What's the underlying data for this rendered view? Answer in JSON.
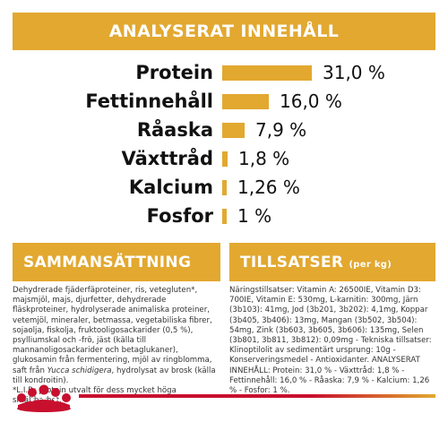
{
  "analysis": {
    "title": "ANALYSERAT INNEHÅLL",
    "rows": [
      {
        "label": "Protein",
        "value": "31,0 %",
        "percent": 31.0
      },
      {
        "label": "Fettinnehåll",
        "value": "16,0 %",
        "percent": 16.0
      },
      {
        "label": "Råaska",
        "value": "7,9 %",
        "percent": 7.9
      },
      {
        "label": "Växttråd",
        "value": "1,8 %",
        "percent": 1.8
      },
      {
        "label": "Kalcium",
        "value": "1,26 %",
        "percent": 1.26
      },
      {
        "label": "Fosfor",
        "value": "1 %",
        "percent": 1.0
      }
    ]
  },
  "composition": {
    "title": "SAMMANSÄTTNING",
    "text_before": "Dehydrerade fjäderfäproteiner, ris, vetegluten*, majsmjöl, majs, djurfetter, dehydrerade fläskproteiner, hydrolyserade animaliska proteiner, vetemjöl, mineraler, betmassa, vegetabiliska fibrer, sojaolja, fiskolja, fruktooligosackarider (0,5 %), psylliumskal och -frö, jäst (källa till mannanoligosackarider och betaglukaner), glukosamin från fermentering, mjöl av ringblomma, saft från ",
    "text_italic": "Yucca schidigera",
    "text_after": ", hydrolysat av brosk (källa till kondroitin).",
    "footnote": "*L.I.P.: protein utvalt för dess mycket höga smältbarhet."
  },
  "additives": {
    "title": "TILLSATSER",
    "unit": "(per kg)",
    "text": "Näringstillsatser: Vitamin A: 26500IE, Vitamin D3: 700IE, Vitamin E: 530mg, L-karnitin: 300mg, Järn (3b103): 41mg, Jod (3b201, 3b202): 4,1mg, Koppar (3b405, 3b406): 13mg, Mangan (3b502, 3b504): 54mg, Zink (3b603, 3b605, 3b606): 135mg, Selen (3b801, 3b811, 3b812): 0,09mg - Tekniska tillsatser: Klinoptilolit av sedimentärt ursprung: 10g - Konserveringsmedel - Antioxidanter. ANALYSERAT INNEHÅLL: Protein: 31,0 % - Växttråd: 1,8 % - Fettinnehåll: 16,0 % - Råaska: 7,9 % - Kalcium: 1,26 % - Fosfor: 1 %."
  },
  "colors": {
    "accent": "#e2a830",
    "brand_red": "#c8102e"
  },
  "logo": {
    "icon": "royal-canin-crown-icon"
  }
}
